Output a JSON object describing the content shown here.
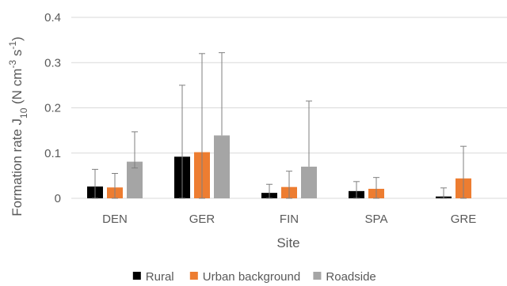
{
  "chart_data": {
    "type": "bar",
    "xlabel": "Site",
    "ylabel_main": "Formation rate J",
    "ylabel_sub": "10",
    "ylabel_unit_open": " (N cm",
    "ylabel_exp1": "-3",
    "ylabel_mid": " s",
    "ylabel_exp2": "-1",
    "ylabel_close": ")",
    "categories": [
      "DEN",
      "GER",
      "FIN",
      "SPA",
      "GRE"
    ],
    "ylim": [
      0,
      0.4
    ],
    "yticks": [
      "0",
      "0.1",
      "0.2",
      "0.3",
      "0.4"
    ],
    "ytick_values": [
      0,
      0.1,
      0.2,
      0.3,
      0.4
    ],
    "grid": true,
    "legend_position": "bottom",
    "series": [
      {
        "name": "Rural",
        "color": "#000000",
        "values": [
          0.026,
          0.092,
          0.012,
          0.016,
          0.004
        ],
        "err_upper": [
          0.064,
          0.25,
          0.031,
          0.037,
          0.023
        ],
        "err_lower": [
          0.026,
          0.092,
          0.012,
          0.016,
          0.004
        ]
      },
      {
        "name": "Urban background",
        "color": "#ed7d31",
        "values": [
          0.024,
          0.102,
          0.025,
          0.021,
          0.044
        ],
        "err_upper": [
          0.055,
          0.32,
          0.06,
          0.046,
          0.115
        ],
        "err_lower": [
          0.024,
          0.102,
          0.025,
          0.021,
          0.044
        ]
      },
      {
        "name": "Roadside",
        "color": "#a5a5a5",
        "values": [
          0.081,
          0.139,
          0.07,
          null,
          null
        ],
        "err_upper": [
          0.147,
          0.322,
          0.215,
          null,
          null
        ],
        "err_lower": [
          0.014,
          0.0,
          0.0,
          null,
          null
        ]
      }
    ]
  }
}
